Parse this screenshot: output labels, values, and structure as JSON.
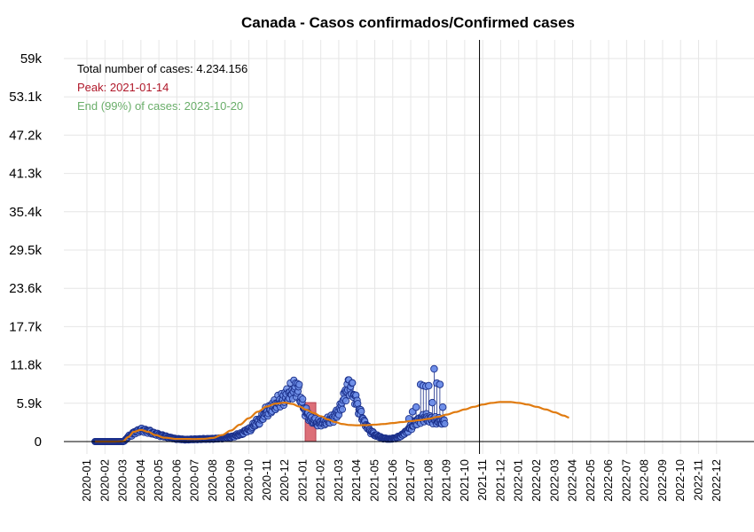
{
  "chart_data": {
    "type": "scatter",
    "title": "Canada - Casos confirmados/Confirmed cases",
    "xlabel": "",
    "ylabel": "",
    "y_ticks": [
      "0",
      "5.9k",
      "11.8k",
      "17.7k",
      "23.6k",
      "29.5k",
      "35.4k",
      "41.3k",
      "47.2k",
      "53.1k",
      "59k"
    ],
    "y_tick_values": [
      0,
      5900,
      11800,
      17700,
      23600,
      29500,
      35400,
      41300,
      47200,
      53100,
      59000
    ],
    "ylim": [
      -1000,
      61000
    ],
    "x_ticks": [
      "2020-01",
      "2020-02",
      "2020-03",
      "2020-04",
      "2020-05",
      "2020-06",
      "2020-07",
      "2020-08",
      "2020-09",
      "2020-10",
      "2020-11",
      "2020-12",
      "2021-01",
      "2021-02",
      "2021-03",
      "2021-04",
      "2021-05",
      "2021-06",
      "2021-07",
      "2021-08",
      "2021-09",
      "2021-10",
      "2021-11",
      "2021-12",
      "2022-01",
      "2022-02",
      "2022-03",
      "2022-04",
      "2022-05",
      "2022-06",
      "2022-07",
      "2022-08",
      "2022-09",
      "2022-10",
      "2022-11",
      "2022-12"
    ],
    "grid": true,
    "annotations": {
      "total": "Total number of cases: 4.234.156",
      "peak": "Peak: 2021-01-14",
      "end": "End (99%) of cases: 2023-10-20"
    },
    "vertical_line_date": "2021-10-26",
    "peak_bar": {
      "date": "2021-01-14",
      "value": 6000
    },
    "colors": {
      "points_fill": "#6f8fe8",
      "points_stroke": "#1a2f8a",
      "curve": "#e07b10",
      "peak_bar": "#d9606a",
      "peak_text": "#b0182a",
      "end_text": "#6aae6a"
    },
    "series": [
      {
        "name": "daily",
        "anchors_month_value": [
          [
            0.45,
            0
          ],
          [
            1.0,
            0
          ],
          [
            1.5,
            0
          ],
          [
            2.0,
            0
          ],
          [
            2.4,
            900
          ],
          [
            2.7,
            1500
          ],
          [
            3.0,
            1800
          ],
          [
            3.4,
            1600
          ],
          [
            3.8,
            1200
          ],
          [
            4.2,
            900
          ],
          [
            4.6,
            600
          ],
          [
            5.0,
            400
          ],
          [
            5.5,
            300
          ],
          [
            6.0,
            350
          ],
          [
            6.5,
            400
          ],
          [
            7.0,
            420
          ],
          [
            7.5,
            500
          ],
          [
            8.0,
            700
          ],
          [
            8.5,
            1100
          ],
          [
            9.0,
            1800
          ],
          [
            9.5,
            3000
          ],
          [
            10.0,
            4500
          ],
          [
            10.4,
            5500
          ],
          [
            10.8,
            6300
          ],
          [
            11.1,
            7000
          ],
          [
            11.35,
            7600
          ],
          [
            11.6,
            8300
          ],
          [
            11.75,
            8000
          ],
          [
            11.9,
            6500
          ],
          [
            12.0,
            5500
          ],
          [
            12.2,
            4400
          ],
          [
            12.5,
            3300
          ],
          [
            12.8,
            2900
          ],
          [
            13.2,
            3000
          ],
          [
            13.6,
            3500
          ],
          [
            14.0,
            4600
          ],
          [
            14.2,
            6000
          ],
          [
            14.4,
            7800
          ],
          [
            14.55,
            8600
          ],
          [
            14.7,
            8200
          ],
          [
            14.85,
            7200
          ],
          [
            15.0,
            6000
          ],
          [
            15.2,
            4400
          ],
          [
            15.5,
            2600
          ],
          [
            15.8,
            1500
          ],
          [
            16.1,
            900
          ],
          [
            16.5,
            500
          ],
          [
            16.8,
            400
          ],
          [
            17.1,
            500
          ],
          [
            17.4,
            800
          ],
          [
            17.7,
            1400
          ],
          [
            18.0,
            2200
          ],
          [
            18.3,
            3000
          ],
          [
            18.6,
            3500
          ],
          [
            18.8,
            3700
          ],
          [
            19.0,
            3500
          ],
          [
            19.3,
            3300
          ],
          [
            19.6,
            3100
          ],
          [
            19.9,
            3000
          ]
        ],
        "weekly_spikes_month_value": [
          [
            17.9,
            3500
          ],
          [
            18.1,
            4600
          ],
          [
            18.3,
            5300
          ],
          [
            18.55,
            8800
          ],
          [
            18.7,
            8600
          ],
          [
            18.85,
            8500
          ],
          [
            19.0,
            8600
          ],
          [
            19.2,
            6000
          ],
          [
            19.3,
            11200
          ],
          [
            19.45,
            9000
          ],
          [
            19.62,
            8800
          ],
          [
            19.78,
            5300
          ]
        ]
      },
      {
        "name": "fitted",
        "anchors_month_value": [
          [
            0.45,
            0
          ],
          [
            1.0,
            0
          ],
          [
            1.5,
            0
          ],
          [
            2.0,
            30
          ],
          [
            2.3,
            700
          ],
          [
            2.6,
            1500
          ],
          [
            3.0,
            1800
          ],
          [
            3.4,
            1500
          ],
          [
            3.8,
            1000
          ],
          [
            4.3,
            600
          ],
          [
            5.0,
            400
          ],
          [
            5.5,
            400
          ],
          [
            6.0,
            380
          ],
          [
            6.5,
            420
          ],
          [
            7.0,
            560
          ],
          [
            7.5,
            1000
          ],
          [
            8.0,
            1700
          ],
          [
            8.5,
            2600
          ],
          [
            9.0,
            3600
          ],
          [
            9.5,
            4600
          ],
          [
            10.0,
            5400
          ],
          [
            10.5,
            5850
          ],
          [
            11.0,
            6000
          ],
          [
            11.4,
            5800
          ],
          [
            11.8,
            5400
          ],
          [
            12.2,
            4900
          ],
          [
            12.6,
            4400
          ],
          [
            13.0,
            3900
          ],
          [
            13.4,
            3400
          ],
          [
            13.8,
            3000
          ],
          [
            14.2,
            2700
          ],
          [
            14.6,
            2550
          ],
          [
            15.0,
            2500
          ],
          [
            15.5,
            2530
          ],
          [
            16.0,
            2600
          ],
          [
            16.5,
            2700
          ],
          [
            17.0,
            2850
          ],
          [
            17.5,
            3000
          ],
          [
            18.0,
            3150
          ],
          [
            18.5,
            3300
          ],
          [
            19.0,
            3500
          ],
          [
            19.5,
            3800
          ],
          [
            20.0,
            4150
          ],
          [
            20.5,
            4550
          ],
          [
            21.0,
            4950
          ],
          [
            21.5,
            5350
          ],
          [
            22.0,
            5700
          ],
          [
            22.5,
            5950
          ],
          [
            23.0,
            6100
          ],
          [
            23.5,
            6100
          ],
          [
            24.0,
            5950
          ],
          [
            24.5,
            5700
          ],
          [
            25.0,
            5350
          ],
          [
            25.5,
            4950
          ],
          [
            26.0,
            4500
          ],
          [
            26.5,
            4000
          ],
          [
            26.8,
            3700
          ]
        ]
      }
    ]
  }
}
